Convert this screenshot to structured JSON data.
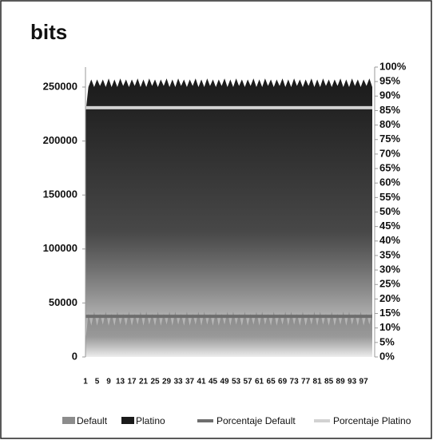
{
  "chart_data": {
    "type": "area",
    "title": "bits",
    "categories": [
      "1",
      null,
      null,
      null,
      "5",
      null,
      null,
      null,
      "9",
      null,
      null,
      null,
      "13",
      null,
      null,
      null,
      "17",
      null,
      null,
      null,
      "21",
      null,
      null,
      null,
      "25",
      null,
      null,
      null,
      "29",
      null,
      null,
      null,
      "33",
      null,
      null,
      null,
      "37",
      null,
      null,
      null,
      "41",
      null,
      null,
      null,
      "45",
      null,
      null,
      null,
      "49",
      null,
      null,
      null,
      "53",
      null,
      null,
      null,
      "57",
      null,
      null,
      null,
      "61",
      null,
      null,
      null,
      "65",
      null,
      null,
      null,
      "69",
      null,
      null,
      null,
      "73",
      null,
      null,
      null,
      "77",
      null,
      null,
      null,
      "81",
      null,
      null,
      null,
      "85",
      null,
      null,
      null,
      "89",
      null,
      null,
      null,
      "93",
      null,
      null,
      null,
      "97",
      null,
      null,
      null
    ],
    "ylim": [
      0,
      268500
    ],
    "yticks": [
      0,
      50000,
      100000,
      150000,
      200000,
      250000
    ],
    "y2lim": [
      0,
      100
    ],
    "y2ticks": [
      {
        "value": 0,
        "label": "0%"
      },
      {
        "value": 5,
        "label": "5%"
      },
      {
        "value": 10,
        "label": "10%"
      },
      {
        "value": 15,
        "label": "15%"
      },
      {
        "value": 20,
        "label": "20%"
      },
      {
        "value": 25,
        "label": "25%"
      },
      {
        "value": 30,
        "label": "30%"
      },
      {
        "value": 35,
        "label": "35%"
      },
      {
        "value": 40,
        "label": "40%"
      },
      {
        "value": 45,
        "label": "45%"
      },
      {
        "value": 50,
        "label": "50%"
      },
      {
        "value": 55,
        "label": "55%"
      },
      {
        "value": 60,
        "label": "60%"
      },
      {
        "value": 65,
        "label": "65%"
      },
      {
        "value": 70,
        "label": "70%"
      },
      {
        "value": 75,
        "label": "75%"
      },
      {
        "value": 80,
        "label": "80%"
      },
      {
        "value": 85,
        "label": "85%"
      },
      {
        "value": 90,
        "label": "90%"
      },
      {
        "value": 95,
        "label": "95%"
      },
      {
        "value": 100,
        "label": "100%"
      }
    ],
    "legend": "bottom",
    "series": [
      {
        "name": "Platino",
        "type": "area",
        "color": "#1a1a1a",
        "values": [
          225000,
          250000,
          257000,
          250000,
          257000,
          251000,
          257000,
          250000,
          258000,
          250000,
          257000,
          250000,
          258000,
          251000,
          257000,
          250000,
          257000,
          251000,
          258000,
          250000,
          257000,
          250000,
          258000,
          251000,
          257000,
          250000,
          257000,
          251000,
          258000,
          250000,
          257000,
          250000,
          258000,
          251000,
          257000,
          250000,
          257000,
          251000,
          258000,
          250000,
          257000,
          250000,
          258000,
          251000,
          257000,
          250000,
          257000,
          251000,
          258000,
          250000,
          257000,
          250000,
          258000,
          251000,
          257000,
          250000,
          257000,
          251000,
          258000,
          250000,
          257000,
          250000,
          258000,
          251000,
          257000,
          250000,
          257000,
          251000,
          258000,
          250000,
          257000,
          250000,
          258000,
          251000,
          257000,
          250000,
          257000,
          251000,
          258000,
          250000,
          257000,
          250000,
          258000,
          251000,
          257000,
          250000,
          257000,
          251000,
          258000,
          250000,
          257000,
          250000,
          258000,
          251000,
          257000,
          250000,
          257000,
          251000,
          258000,
          250000
        ]
      },
      {
        "name": "Default",
        "type": "area",
        "color": "#8c8c8c",
        "values": [
          15000,
          40000,
          29000,
          42000,
          29000,
          40000,
          30000,
          42000,
          29000,
          40000,
          29000,
          42000,
          30000,
          40000,
          29000,
          42000,
          29000,
          40000,
          30000,
          42000,
          29000,
          42000,
          30000,
          40000,
          29000,
          42000,
          29000,
          40000,
          30000,
          42000,
          29000,
          42000,
          30000,
          40000,
          29000,
          42000,
          29000,
          40000,
          30000,
          42000,
          29000,
          42000,
          30000,
          40000,
          29000,
          42000,
          29000,
          40000,
          30000,
          42000,
          29000,
          42000,
          30000,
          40000,
          29000,
          42000,
          29000,
          40000,
          30000,
          42000,
          29000,
          42000,
          30000,
          40000,
          29000,
          42000,
          29000,
          40000,
          30000,
          42000,
          29000,
          42000,
          30000,
          40000,
          29000,
          42000,
          29000,
          40000,
          30000,
          42000,
          29000,
          42000,
          30000,
          40000,
          29000,
          42000,
          29000,
          40000,
          30000,
          42000,
          29000,
          42000,
          30000,
          40000,
          29000,
          42000,
          29000,
          40000,
          30000,
          42000
        ]
      },
      {
        "name": "Porcentaje Default",
        "type": "line",
        "axis": "y2",
        "color": "#6e6e6e",
        "values": [
          14,
          14,
          14,
          14,
          14,
          14,
          14,
          14,
          14,
          14,
          14,
          14,
          14,
          14,
          14,
          14,
          14,
          14,
          14,
          14,
          14,
          14,
          14,
          14,
          14,
          14,
          14,
          14,
          14,
          14,
          14,
          14,
          14,
          14,
          14,
          14,
          14,
          14,
          14,
          14,
          14,
          14,
          14,
          14,
          14,
          14,
          14,
          14,
          14,
          14,
          14,
          14,
          14,
          14,
          14,
          14,
          14,
          14,
          14,
          14,
          14,
          14,
          14,
          14,
          14,
          14,
          14,
          14,
          14,
          14,
          14,
          14,
          14,
          14,
          14,
          14,
          14,
          14,
          14,
          14,
          14,
          14,
          14,
          14,
          14,
          14,
          14,
          14,
          14,
          14,
          14,
          14,
          14,
          14,
          14,
          14,
          14,
          14,
          14,
          14
        ]
      },
      {
        "name": "Porcentaje Platino",
        "type": "line",
        "axis": "y2",
        "color": "#d2d2d2",
        "values": [
          86,
          86,
          86,
          86,
          86,
          86,
          86,
          86,
          86,
          86,
          86,
          86,
          86,
          86,
          86,
          86,
          86,
          86,
          86,
          86,
          86,
          86,
          86,
          86,
          86,
          86,
          86,
          86,
          86,
          86,
          86,
          86,
          86,
          86,
          86,
          86,
          86,
          86,
          86,
          86,
          86,
          86,
          86,
          86,
          86,
          86,
          86,
          86,
          86,
          86,
          86,
          86,
          86,
          86,
          86,
          86,
          86,
          86,
          86,
          86,
          86,
          86,
          86,
          86,
          86,
          86,
          86,
          86,
          86,
          86,
          86,
          86,
          86,
          86,
          86,
          86,
          86,
          86,
          86,
          86,
          86,
          86,
          86,
          86,
          86,
          86,
          86,
          86,
          86,
          86,
          86,
          86,
          86,
          86,
          86,
          86,
          86,
          86,
          86,
          86
        ]
      }
    ]
  }
}
